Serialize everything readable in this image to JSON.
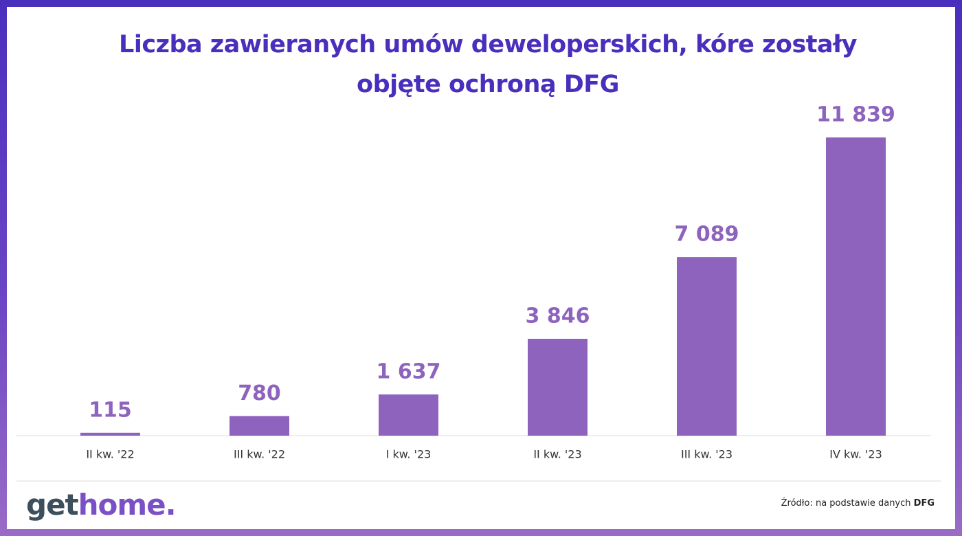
{
  "chart_data": {
    "type": "bar",
    "title": "Liczba zawieranych umów deweloperskich, kóre zostały objęte ochroną DFG",
    "categories": [
      "II kw. '22",
      "III kw. '22",
      "I kw. '23",
      "II kw. '23",
      "III kw. '23",
      "IV kw. '23"
    ],
    "values": [
      115,
      780,
      1637,
      3846,
      7089,
      11839
    ],
    "value_labels": [
      "115",
      "780",
      "1 637",
      "3 846",
      "7 089",
      "11 839"
    ],
    "color": "#8e63bd"
  },
  "logo": {
    "dark": "get",
    "accent": "home."
  },
  "source": {
    "text": "Źródło: na podstawie danych",
    "bold": "DFG"
  }
}
